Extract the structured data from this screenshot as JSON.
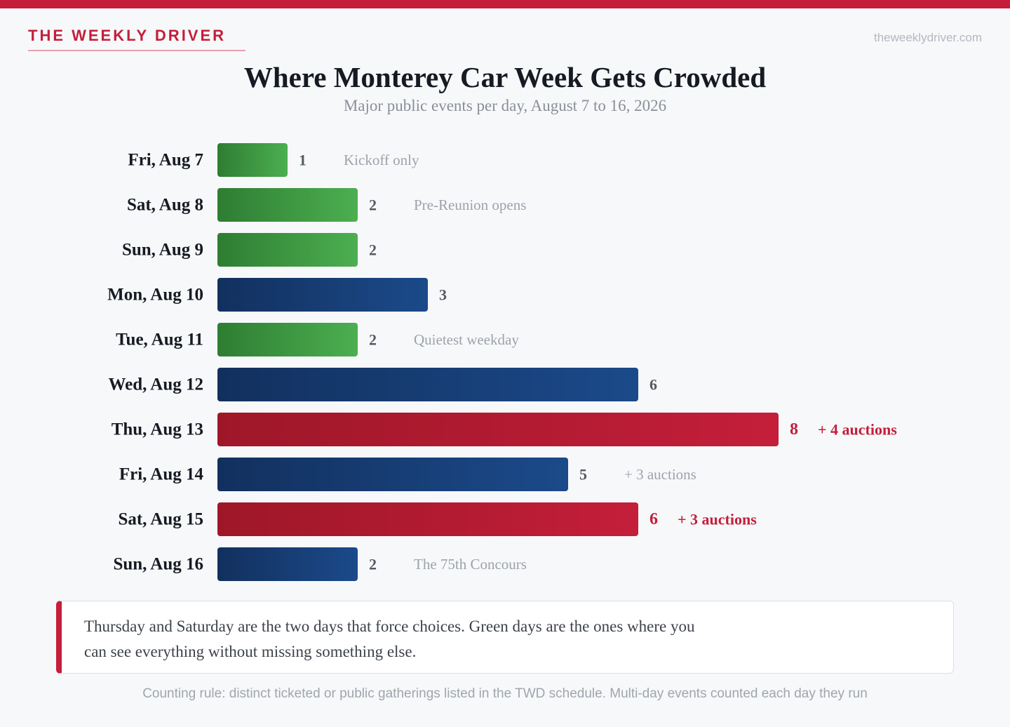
{
  "header": {
    "brand": "THE WEEKLY DRIVER",
    "site": "theweeklydriver.com"
  },
  "colors": {
    "accent": "#c41e3a",
    "green_start": "#2e7d32",
    "green_end": "#4caf50",
    "blue_start": "#12305e",
    "blue_end": "#1b4a8a",
    "red_start": "#9e1728",
    "red_end": "#c41e3a"
  },
  "chart_data": {
    "type": "bar",
    "orientation": "horizontal",
    "title": "Where Monterey Car Week Gets Crowded",
    "subtitle": "Major public events per day, August 7 to 16, 2026",
    "xlim": [
      0,
      8
    ],
    "grid": false,
    "categories": [
      "Fri, Aug 7",
      "Sat, Aug 8",
      "Sun, Aug 9",
      "Mon, Aug 10",
      "Tue, Aug 11",
      "Wed, Aug 12",
      "Thu, Aug 13",
      "Fri, Aug 14",
      "Sat, Aug 15",
      "Sun, Aug 16"
    ],
    "values": [
      1,
      2,
      2,
      3,
      2,
      6,
      8,
      5,
      6,
      2
    ],
    "bar_style": [
      "green",
      "green",
      "green",
      "blue",
      "green",
      "blue",
      "red",
      "blue",
      "red",
      "blue"
    ],
    "annotations": [
      "Kickoff only",
      "Pre-Reunion opens",
      "",
      "",
      "Quietest weekday",
      "",
      "+ 4 auctions",
      "+ 3 auctions",
      "+ 3 auctions",
      "The 75th Concours"
    ]
  },
  "callout": {
    "text": "Thursday and Saturday are the two days that force choices. Green days are the ones where you can see everything without missing something else."
  },
  "footnote": "Counting rule: distinct ticketed or public gatherings listed in the TWD schedule. Multi-day events counted each day they run"
}
